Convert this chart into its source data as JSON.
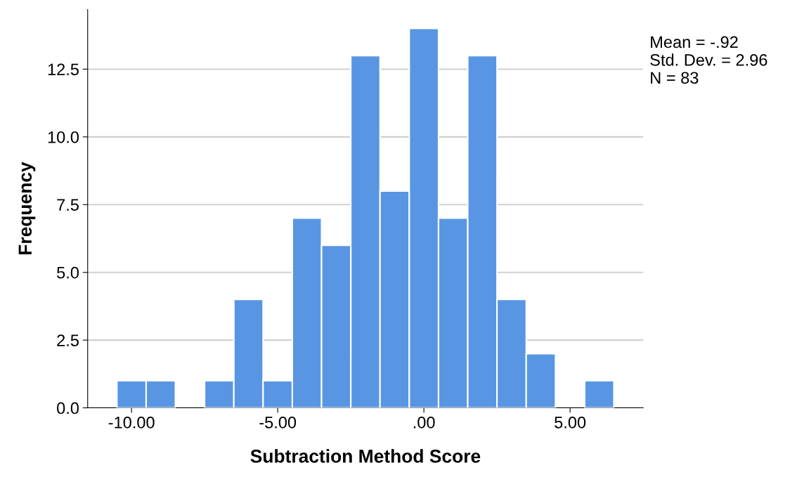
{
  "chart_data": {
    "type": "histogram",
    "xlabel": "Subtraction Method Score",
    "ylabel": "Frequency",
    "bins": [
      -10.5,
      -9.5,
      -8.5,
      -7.5,
      -6.5,
      -5.5,
      -4.5,
      -3.5,
      -2.5,
      -1.5,
      -0.5,
      0.5,
      1.5,
      2.5,
      3.5,
      4.5,
      5.5,
      6.5
    ],
    "values": [
      1,
      1,
      0,
      1,
      4,
      1,
      7,
      6,
      13,
      8,
      14,
      7,
      13,
      4,
      2,
      0,
      1
    ],
    "color": "#5896e3",
    "xlim": [
      -11.5,
      7.5
    ],
    "xticks": [
      {
        "value": -10,
        "label": "-10.00"
      },
      {
        "value": -5,
        "label": "-5.00"
      },
      {
        "value": 0,
        "label": ".00"
      },
      {
        "value": 5,
        "label": "5.00"
      }
    ],
    "ylim": [
      0,
      14.7
    ],
    "yticks": [
      {
        "value": 0,
        "label": "0.0"
      },
      {
        "value": 2.5,
        "label": "2.5"
      },
      {
        "value": 5,
        "label": "5.0"
      },
      {
        "value": 7.5,
        "label": "7.5"
      },
      {
        "value": 10,
        "label": "10.0"
      },
      {
        "value": 12.5,
        "label": "12.5"
      }
    ],
    "grid": "y",
    "annotations": [
      "Mean = -.92",
      "Std. Dev. = 2.96",
      "N = 83"
    ]
  }
}
